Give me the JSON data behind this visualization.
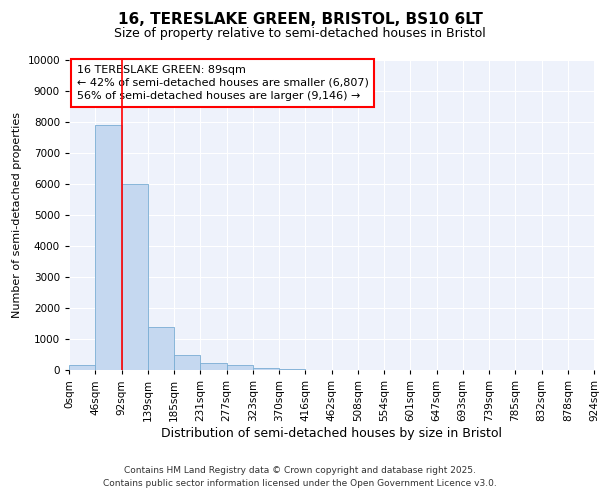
{
  "title_line1": "16, TERESLAKE GREEN, BRISTOL, BS10 6LT",
  "title_line2": "Size of property relative to semi-detached houses in Bristol",
  "xlabel": "Distribution of semi-detached houses by size in Bristol",
  "ylabel": "Number of semi-detached properties",
  "footer_line1": "Contains HM Land Registry data © Crown copyright and database right 2025.",
  "footer_line2": "Contains public sector information licensed under the Open Government Licence v3.0.",
  "annotation_line1": "16 TERESLAKE GREEN: 89sqm",
  "annotation_line2": "← 42% of semi-detached houses are smaller (6,807)",
  "annotation_line3": "56% of semi-detached houses are larger (9,146) →",
  "bin_labels": [
    "0sqm",
    "46sqm",
    "92sqm",
    "139sqm",
    "185sqm",
    "231sqm",
    "277sqm",
    "323sqm",
    "370sqm",
    "416sqm",
    "462sqm",
    "508sqm",
    "554sqm",
    "601sqm",
    "647sqm",
    "693sqm",
    "739sqm",
    "785sqm",
    "832sqm",
    "878sqm",
    "924sqm"
  ],
  "bar_values": [
    150,
    7900,
    6000,
    1400,
    500,
    230,
    150,
    80,
    30,
    0,
    0,
    0,
    0,
    0,
    0,
    0,
    0,
    0,
    0,
    0
  ],
  "bar_color": "#c5d8f0",
  "bar_edge_color": "#7aadd4",
  "red_line_x": 2.0,
  "ylim": [
    0,
    10000
  ],
  "yticks": [
    0,
    1000,
    2000,
    3000,
    4000,
    5000,
    6000,
    7000,
    8000,
    9000,
    10000
  ],
  "background_color": "#eef2fb",
  "grid_color": "#ffffff",
  "title_fontsize": 11,
  "subtitle_fontsize": 9,
  "annotation_fontsize": 8,
  "ylabel_fontsize": 8,
  "xlabel_fontsize": 9,
  "footer_fontsize": 6.5,
  "tick_fontsize": 7.5
}
